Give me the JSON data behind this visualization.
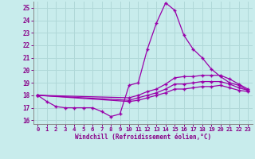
{
  "xlabel": "Windchill (Refroidissement éolien,°C)",
  "background_color": "#c8ecec",
  "grid_color": "#b0d8d8",
  "line_color": "#9900aa",
  "xlim": [
    -0.5,
    23.5
  ],
  "ylim": [
    15.7,
    25.5
  ],
  "yticks": [
    16,
    17,
    18,
    19,
    20,
    21,
    22,
    23,
    24,
    25
  ],
  "xticks": [
    0,
    1,
    2,
    3,
    4,
    5,
    6,
    7,
    8,
    9,
    10,
    11,
    12,
    13,
    14,
    15,
    16,
    17,
    18,
    19,
    20,
    21,
    22,
    23
  ],
  "curve_main_x": [
    0,
    1,
    2,
    3,
    4,
    5,
    6,
    7,
    8,
    9,
    10,
    11,
    12,
    13,
    14,
    15,
    16,
    17,
    18,
    19,
    20,
    21,
    22,
    23
  ],
  "curve_main_y": [
    18.0,
    17.5,
    17.1,
    17.0,
    17.0,
    17.0,
    17.0,
    16.7,
    16.3,
    16.5,
    18.8,
    19.0,
    21.7,
    23.8,
    25.4,
    24.8,
    22.8,
    21.7,
    21.0,
    20.1,
    19.5,
    19.0,
    18.8,
    18.4
  ],
  "curve2_x": [
    0,
    10,
    11,
    12,
    13,
    14,
    15,
    16,
    17,
    18,
    19,
    20,
    21,
    22,
    23
  ],
  "curve2_y": [
    18.0,
    17.8,
    18.0,
    18.3,
    18.5,
    18.9,
    19.4,
    19.5,
    19.5,
    19.6,
    19.6,
    19.6,
    19.3,
    18.9,
    18.5
  ],
  "curve3_x": [
    0,
    10,
    11,
    12,
    13,
    14,
    15,
    16,
    17,
    18,
    19,
    20,
    21,
    22,
    23
  ],
  "curve3_y": [
    18.0,
    17.6,
    17.8,
    18.0,
    18.2,
    18.5,
    18.9,
    18.9,
    19.0,
    19.1,
    19.1,
    19.1,
    18.9,
    18.6,
    18.4
  ],
  "curve4_x": [
    0,
    10,
    11,
    12,
    13,
    14,
    15,
    16,
    17,
    18,
    19,
    20,
    21,
    22,
    23
  ],
  "curve4_y": [
    18.0,
    17.5,
    17.6,
    17.8,
    18.0,
    18.2,
    18.5,
    18.5,
    18.6,
    18.7,
    18.7,
    18.8,
    18.6,
    18.4,
    18.3
  ]
}
